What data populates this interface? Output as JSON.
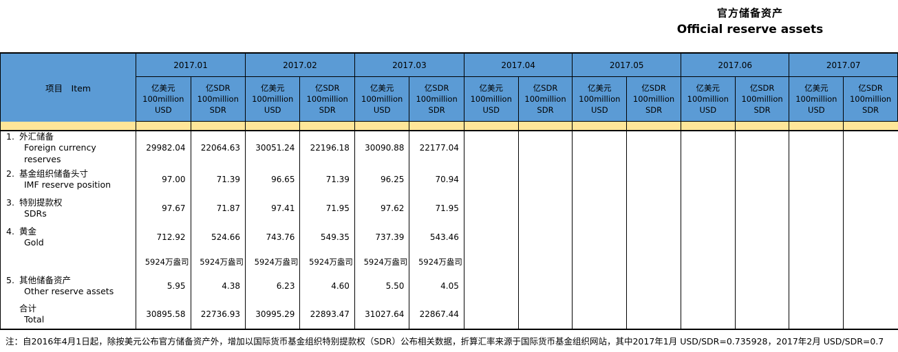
{
  "title": {
    "cn": "官方储备资产",
    "en": "Official reserve assets"
  },
  "table": {
    "item_header": "项目　Item",
    "months": [
      "2017.01",
      "2017.02",
      "2017.03",
      "2017.04",
      "2017.05",
      "2017.06",
      "2017.07"
    ],
    "unit_usd": "亿美元\n100million\nUSD",
    "unit_sdr": "亿SDR\n100million\nSDR",
    "rows": [
      {
        "num": "1.",
        "cn": "外汇储备",
        "en": "Foreign currency reserves",
        "type": "value",
        "values": [
          "29982.04",
          "22064.63",
          "30051.24",
          "22196.18",
          "30090.88",
          "22177.04",
          "",
          "",
          "",
          "",
          "",
          "",
          "",
          ""
        ]
      },
      {
        "num": "2.",
        "cn": "基金组织储备头寸",
        "en": "IMF reserve position",
        "type": "value",
        "values": [
          "97.00",
          "71.39",
          "96.65",
          "71.39",
          "96.25",
          "70.94",
          "",
          "",
          "",
          "",
          "",
          "",
          "",
          ""
        ]
      },
      {
        "num": "3.",
        "cn": "特别提款权",
        "en": "SDRs",
        "type": "value",
        "values": [
          "97.67",
          "71.87",
          "97.41",
          "71.95",
          "97.62",
          "71.95",
          "",
          "",
          "",
          "",
          "",
          "",
          "",
          ""
        ]
      },
      {
        "num": "4.",
        "cn": "黄金",
        "en": "Gold",
        "type": "value",
        "values": [
          "712.92",
          "524.66",
          "743.76",
          "549.35",
          "737.39",
          "543.46",
          "",
          "",
          "",
          "",
          "",
          "",
          "",
          ""
        ]
      },
      {
        "num": "",
        "cn": "",
        "en": "",
        "type": "ounce",
        "values": [
          "5924万盎司",
          "5924万盎司",
          "5924万盎司",
          "5924万盎司",
          "5924万盎司",
          "5924万盎司",
          "",
          "",
          "",
          "",
          "",
          "",
          "",
          ""
        ]
      },
      {
        "num": "5.",
        "cn": "其他储备资产",
        "en": "Other reserve assets",
        "type": "value",
        "values": [
          "5.95",
          "4.38",
          "6.23",
          "4.60",
          "5.50",
          "4.05",
          "",
          "",
          "",
          "",
          "",
          "",
          "",
          ""
        ]
      },
      {
        "num": "",
        "cn": "合计",
        "en": "Total",
        "type": "value",
        "values": [
          "30895.58",
          "22736.93",
          "30995.29",
          "22893.47",
          "31027.64",
          "22867.44",
          "",
          "",
          "",
          "",
          "",
          "",
          "",
          ""
        ]
      }
    ]
  },
  "note": "注：自2016年4月1日起，除按美元公布官方储备资产外，增加以国际货币基金组织特别提款权（SDR）公布相关数据，折算汇率来源于国际货币基金组织网站，其中2017年1月 USD/SDR=0.735928，2017年2月 USD/SDR=0.7",
  "colors": {
    "header_blue": "#5B9BD5",
    "band_yellow": "#FFE699",
    "border": "#000000"
  }
}
